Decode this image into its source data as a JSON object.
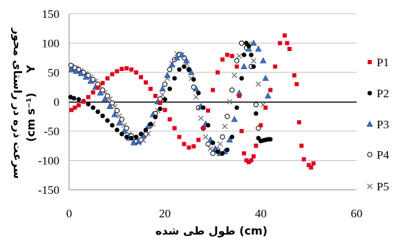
{
  "chart_data": {
    "type": "scatter",
    "title": "",
    "xlabel": "طول طی شده (cm)",
    "ylabel_persian": "سرعت ذره در راستای محور",
    "ylabel_symbol": "Y",
    "ylabel_units": "(cm s⁻¹)",
    "xlim": [
      0,
      60
    ],
    "ylim": [
      -150,
      150
    ],
    "x_ticks": [
      "0",
      "20",
      "40",
      "60"
    ],
    "y_ticks": [
      "150",
      "100",
      "50",
      "0",
      "-50",
      "-100",
      "-150"
    ],
    "grid": "horizontal",
    "legend_placement": "right",
    "series": [
      {
        "name": "P1",
        "marker": "square",
        "color": "#e0001b",
        "points": [
          [
            0.5,
            -14
          ],
          [
            1.2,
            -10
          ],
          [
            2,
            -6
          ],
          [
            3,
            0
          ],
          [
            4,
            8
          ],
          [
            5,
            16
          ],
          [
            6,
            24
          ],
          [
            7,
            32
          ],
          [
            8,
            40
          ],
          [
            9,
            47
          ],
          [
            10,
            52
          ],
          [
            11,
            56
          ],
          [
            12,
            57
          ],
          [
            13,
            55
          ],
          [
            14,
            50
          ],
          [
            15,
            42
          ],
          [
            16,
            33
          ],
          [
            17,
            22
          ],
          [
            18,
            10
          ],
          [
            19,
            -2
          ],
          [
            20,
            -14
          ],
          [
            21,
            -30
          ],
          [
            22,
            -45
          ],
          [
            23,
            -60
          ],
          [
            24,
            -72
          ],
          [
            25,
            -78
          ],
          [
            26,
            -76
          ],
          [
            27,
            -65
          ],
          [
            28,
            -45
          ],
          [
            29,
            -15
          ],
          [
            30,
            20
          ],
          [
            31,
            50
          ],
          [
            32,
            72
          ],
          [
            33,
            80
          ],
          [
            34,
            78
          ],
          [
            35,
            60
          ],
          [
            35.5,
            10
          ],
          [
            36,
            -50
          ],
          [
            36.5,
            -88
          ],
          [
            37,
            -100
          ],
          [
            37.5,
            -103
          ],
          [
            38,
            -100
          ],
          [
            38.5,
            -93
          ],
          [
            39,
            -75
          ],
          [
            40,
            -40
          ],
          [
            41,
            -10
          ],
          [
            42,
            20
          ],
          [
            43,
            60
          ],
          [
            44,
            100
          ],
          [
            45,
            113
          ],
          [
            45.5,
            100
          ],
          [
            46,
            90
          ],
          [
            47,
            45
          ],
          [
            47.5,
            30
          ],
          [
            48,
            -35
          ],
          [
            48.5,
            -75
          ],
          [
            49,
            -98
          ],
          [
            50,
            -108
          ],
          [
            50.5,
            -112
          ],
          [
            51,
            -105
          ]
        ]
      },
      {
        "name": "P2",
        "marker": "circle",
        "color": "#000000",
        "points": [
          [
            0.3,
            8
          ],
          [
            1,
            6
          ],
          [
            2,
            4
          ],
          [
            3,
            1
          ],
          [
            4,
            -4
          ],
          [
            5,
            -10
          ],
          [
            6,
            -17
          ],
          [
            7,
            -24
          ],
          [
            8,
            -32
          ],
          [
            9,
            -40
          ],
          [
            10,
            -48
          ],
          [
            11,
            -55
          ],
          [
            12,
            -60
          ],
          [
            13,
            -62
          ],
          [
            14,
            -60
          ],
          [
            15,
            -55
          ],
          [
            16,
            -48
          ],
          [
            17,
            -38
          ],
          [
            18,
            -26
          ],
          [
            19,
            -12
          ],
          [
            20,
            4
          ],
          [
            21,
            22
          ],
          [
            22,
            40
          ],
          [
            23,
            55
          ],
          [
            24,
            60
          ],
          [
            25,
            55
          ],
          [
            26,
            38
          ],
          [
            27,
            15
          ],
          [
            28,
            -10
          ],
          [
            29,
            -40
          ],
          [
            30,
            -70
          ],
          [
            31,
            -85
          ],
          [
            32,
            -88
          ],
          [
            33,
            -82
          ],
          [
            34,
            -60
          ],
          [
            35,
            -10
          ],
          [
            36,
            40
          ],
          [
            36.5,
            80
          ],
          [
            37,
            100
          ],
          [
            37.5,
            95
          ],
          [
            38,
            80
          ],
          [
            38.5,
            60
          ],
          [
            39,
            -20
          ],
          [
            39.5,
            -62
          ],
          [
            40,
            -67
          ],
          [
            40.5,
            -66
          ],
          [
            41,
            -65
          ],
          [
            41.5,
            -64
          ],
          [
            42,
            -64
          ]
        ]
      },
      {
        "name": "P3",
        "marker": "triangle",
        "color": "#3d6fc4",
        "points": [
          [
            0.5,
            55
          ],
          [
            1.5,
            52
          ],
          [
            2.5,
            48
          ],
          [
            3.5,
            42
          ],
          [
            4.5,
            35
          ],
          [
            5.5,
            25
          ],
          [
            6.5,
            15
          ],
          [
            7.5,
            5
          ],
          [
            8.5,
            -8
          ],
          [
            9.5,
            -22
          ],
          [
            10.5,
            -36
          ],
          [
            11.5,
            -50
          ],
          [
            12.5,
            -62
          ],
          [
            13.5,
            -70
          ],
          [
            14.5,
            -68
          ],
          [
            15.5,
            -58
          ],
          [
            16.5,
            -42
          ],
          [
            17.5,
            -22
          ],
          [
            18.5,
            0
          ],
          [
            19.5,
            22
          ],
          [
            20.5,
            45
          ],
          [
            21.5,
            63
          ],
          [
            22.5,
            75
          ],
          [
            23.5,
            80
          ],
          [
            24.5,
            70
          ],
          [
            25.5,
            50
          ],
          [
            26.5,
            22
          ],
          [
            27.5,
            -8
          ],
          [
            28.5,
            -38
          ],
          [
            29.5,
            -65
          ],
          [
            30.5,
            -80
          ],
          [
            31.5,
            -88
          ],
          [
            32.5,
            -85
          ],
          [
            33.5,
            -65
          ],
          [
            34.5,
            -30
          ],
          [
            35.5,
            15
          ],
          [
            36.5,
            60
          ],
          [
            37.5,
            90
          ],
          [
            38.5,
            100
          ],
          [
            39.5,
            90
          ],
          [
            40.5,
            70
          ],
          [
            41,
            40
          ],
          [
            41.5,
            10
          ]
        ]
      },
      {
        "name": "P4",
        "marker": "circle-open",
        "color": "#000000",
        "points": [
          [
            0.4,
            62
          ],
          [
            1.2,
            58
          ],
          [
            2,
            55
          ],
          [
            3,
            50
          ],
          [
            4,
            45
          ],
          [
            5,
            38
          ],
          [
            6,
            30
          ],
          [
            7,
            20
          ],
          [
            8,
            10
          ],
          [
            9,
            -2
          ],
          [
            10,
            -15
          ],
          [
            11,
            -30
          ],
          [
            12,
            -45
          ],
          [
            13,
            -58
          ],
          [
            14,
            -68
          ],
          [
            15,
            -65
          ],
          [
            16,
            -55
          ],
          [
            17,
            -40
          ],
          [
            18,
            -20
          ],
          [
            19,
            5
          ],
          [
            20,
            30
          ],
          [
            21,
            55
          ],
          [
            22,
            72
          ],
          [
            23,
            80
          ],
          [
            24,
            75
          ],
          [
            25,
            55
          ],
          [
            26,
            25
          ],
          [
            27,
            -10
          ],
          [
            28,
            -45
          ],
          [
            29,
            -72
          ],
          [
            30,
            -88
          ],
          [
            31,
            -82
          ],
          [
            32,
            -60
          ],
          [
            33,
            -25
          ],
          [
            34,
            20
          ],
          [
            35,
            70
          ],
          [
            36,
            100
          ],
          [
            37,
            92
          ],
          [
            38,
            60
          ],
          [
            39,
            -5
          ],
          [
            39.5,
            -45
          ]
        ]
      },
      {
        "name": "P5",
        "marker": "x",
        "color": "#707070",
        "points": [
          [
            0.5,
            60
          ],
          [
            1.5,
            57
          ],
          [
            2.5,
            53
          ],
          [
            3.5,
            48
          ],
          [
            4.5,
            42
          ],
          [
            5.5,
            35
          ],
          [
            6.5,
            26
          ],
          [
            7.5,
            16
          ],
          [
            8.5,
            5
          ],
          [
            9.5,
            -8
          ],
          [
            10.5,
            -24
          ],
          [
            11.5,
            -40
          ],
          [
            12.5,
            -55
          ],
          [
            13.5,
            -66
          ],
          [
            14.5,
            -70
          ],
          [
            15.5,
            -66
          ],
          [
            16.5,
            -54
          ],
          [
            17.5,
            -38
          ],
          [
            18.5,
            -15
          ],
          [
            19.5,
            12
          ],
          [
            20.5,
            40
          ],
          [
            21.5,
            65
          ],
          [
            22.5,
            82
          ],
          [
            23.5,
            80
          ],
          [
            24.5,
            65
          ],
          [
            25.5,
            40
          ],
          [
            26.5,
            8
          ],
          [
            27.5,
            -28
          ],
          [
            28.5,
            -60
          ],
          [
            29.5,
            -80
          ],
          [
            30.5,
            -85
          ],
          [
            31.5,
            -72
          ],
          [
            32.5,
            -42
          ],
          [
            33.5,
            0
          ],
          [
            34.5,
            45
          ],
          [
            35.5,
            78
          ],
          [
            36.5,
            100
          ],
          [
            37.5,
            98
          ],
          [
            38.5,
            70
          ],
          [
            39.5,
            30
          ],
          [
            40.5,
            -5
          ]
        ]
      }
    ]
  }
}
